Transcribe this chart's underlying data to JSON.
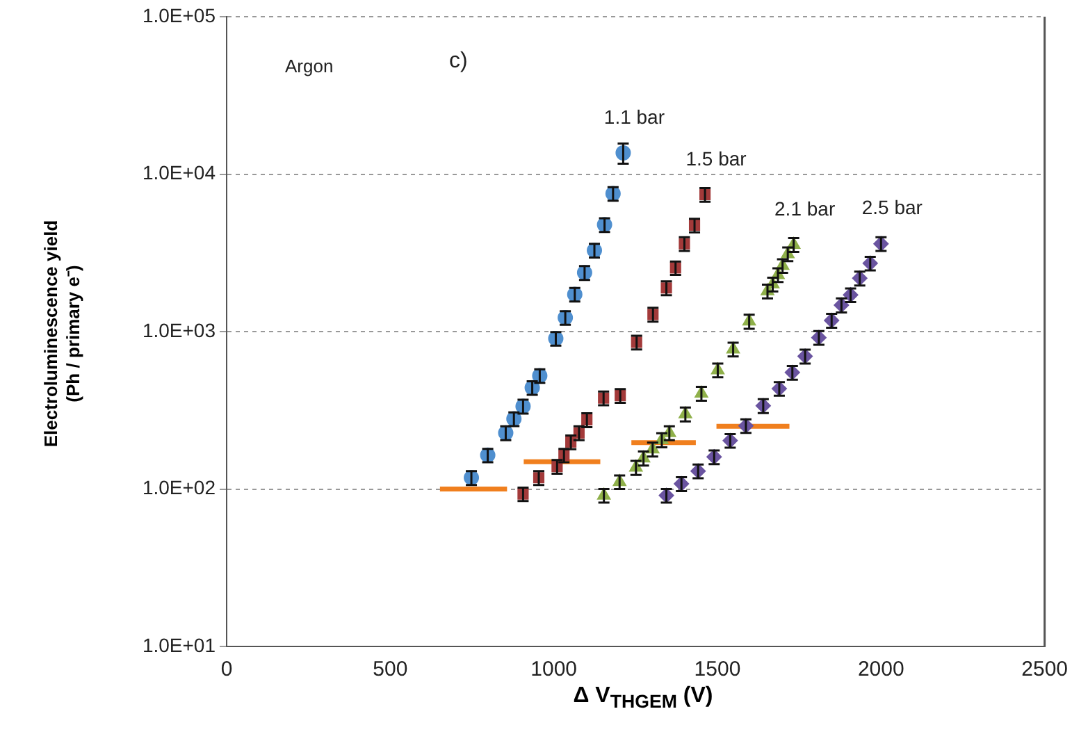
{
  "chart_data": {
    "type": "scatter",
    "xlabel": "Δ V$_{THGEM}$ (V)",
    "ylabel": "Electroluminescence  yield\n(Ph / primary e⁻)",
    "annotations": [
      "Argon",
      "c)"
    ],
    "xlim": [
      0,
      2500
    ],
    "xticks": [
      0,
      500,
      1000,
      1500,
      2000,
      2500
    ],
    "ylim": [
      10,
      100000
    ],
    "yticks": [
      {
        "value": 10,
        "label": "1.0E+01"
      },
      {
        "value": 100,
        "label": "1.0E+02"
      },
      {
        "value": 1000,
        "label": "1.0E+03"
      },
      {
        "value": 10000,
        "label": "1.0E+04"
      },
      {
        "value": 100000,
        "label": "1.0E+05"
      }
    ],
    "log": "y",
    "grid": "y",
    "legend": false,
    "series": [
      {
        "name": "1.1 bar",
        "color": "#4f8fcf",
        "marker": "circle",
        "x": [
          748,
          798,
          853,
          878,
          906,
          934,
          957,
          1006,
          1035,
          1064,
          1094,
          1124,
          1155,
          1181,
          1212
        ],
        "values": [
          118,
          164,
          227,
          279,
          335,
          440,
          524,
          903,
          1225,
          1723,
          2367,
          3280,
          4770,
          7520,
          13650
        ],
        "errors": [
          12,
          16,
          23,
          28,
          34,
          44,
          52,
          90,
          120,
          170,
          240,
          330,
          480,
          750,
          2000
        ]
      },
      {
        "name": "1.5 bar",
        "color": "#a33a3a",
        "marker": "square",
        "x": [
          906,
          954,
          1010,
          1031,
          1052,
          1077,
          1101,
          1152,
          1203,
          1253,
          1303,
          1344,
          1372,
          1399,
          1430,
          1462
        ],
        "values": [
          93,
          118,
          139,
          164,
          199,
          227,
          275,
          378,
          392,
          855,
          1285,
          1892,
          2538,
          3610,
          4735,
          7410
        ],
        "errors": [
          9,
          12,
          14,
          16,
          20,
          23,
          28,
          38,
          39,
          86,
          130,
          190,
          250,
          360,
          470,
          740
        ]
      },
      {
        "name": "2.1 bar",
        "color": "#8fb04a",
        "marker": "triangle",
        "x": [
          1153,
          1201,
          1251,
          1274,
          1302,
          1330,
          1353,
          1402,
          1451,
          1501,
          1548,
          1597,
          1653,
          1669,
          1685,
          1699,
          1715,
          1733
        ],
        "values": [
          91,
          111,
          137,
          157,
          179,
          205,
          227,
          299,
          405,
          569,
          772,
          1161,
          1806,
          2000,
          2291,
          2622,
          3110,
          3560
        ],
        "errors": [
          9,
          11,
          14,
          16,
          18,
          21,
          23,
          30,
          41,
          57,
          77,
          120,
          180,
          200,
          230,
          260,
          310,
          360
        ]
      },
      {
        "name": "2.5 bar",
        "color": "#6a54a0",
        "marker": "diamond",
        "x": [
          1344,
          1390,
          1441,
          1490,
          1539,
          1587,
          1640,
          1689,
          1729,
          1768,
          1810,
          1849,
          1879,
          1907,
          1935,
          1967,
          2000
        ],
        "values": [
          91,
          108,
          130,
          160,
          203,
          252,
          338,
          434,
          550,
          697,
          916,
          1177,
          1473,
          1709,
          2183,
          2716,
          3610
        ],
        "errors": [
          9,
          11,
          13,
          16,
          20,
          25,
          34,
          43,
          55,
          70,
          92,
          120,
          150,
          170,
          220,
          270,
          360
        ]
      },
      {
        "type": "line",
        "color": "#f07f1e",
        "x": [
          652,
          857
        ],
        "values": [
          100,
          100
        ]
      },
      {
        "type": "line",
        "color": "#f07f1e",
        "x": [
          908,
          1142
        ],
        "values": [
          149,
          149
        ]
      },
      {
        "type": "line",
        "color": "#f07f1e",
        "x": [
          1237,
          1434
        ],
        "values": [
          197,
          197
        ]
      },
      {
        "type": "line",
        "color": "#f07f1e",
        "x": [
          1497,
          1720
        ],
        "values": [
          250,
          250
        ]
      }
    ]
  }
}
